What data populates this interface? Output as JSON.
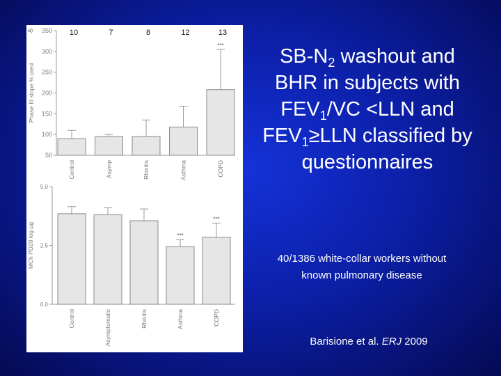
{
  "slide": {
    "title_parts": {
      "p1": "SB-N",
      "sub1": "2",
      "p2": " washout and BHR in subjects with FEV",
      "sub2": "1",
      "p3": "/VC <LLN and FEV",
      "sub3": "1",
      "p4": "≥LLN classified by questionnaires"
    },
    "subtitle": "40/1386 white-collar workers without known pulmonary disease",
    "citation": {
      "authors": "Barisione et al. ",
      "journal": "ERJ",
      "year": " 2009"
    }
  },
  "colors": {
    "background": "#0c1fa8",
    "bar_fill": "#e6e6e6",
    "bar_stroke": "#888888",
    "axis": "#999999",
    "text": "#ffffff"
  },
  "chart_data": [
    {
      "type": "bar",
      "panel_label": "a)",
      "ylabel": "Phase III slope % pred",
      "ylim": [
        50,
        350
      ],
      "yticks": [
        "50",
        "100",
        "150",
        "200",
        "250",
        "300",
        "350"
      ],
      "categories": [
        "Control",
        "Asymp",
        "Rhinitis",
        "Asthma",
        "COPD"
      ],
      "values": [
        90,
        95,
        95,
        118,
        208
      ],
      "error_upper": [
        110,
        100,
        135,
        168,
        305
      ],
      "sample_sizes": [
        "10",
        "7",
        "8",
        "12",
        "13"
      ],
      "significance": [
        "",
        "",
        "",
        "",
        "***"
      ]
    },
    {
      "type": "bar",
      "ylabel": "MCh PD20 log µg",
      "ylim": [
        0.0,
        5.0
      ],
      "yticks": [
        "0.0",
        "2.5",
        "5.0"
      ],
      "categories": [
        "Control",
        "Asymptomatic",
        "Rhinitis",
        "Asthma",
        "COPD"
      ],
      "values": [
        3.85,
        3.8,
        3.55,
        2.45,
        2.85
      ],
      "error_upper": [
        4.15,
        4.1,
        4.05,
        2.75,
        3.45
      ],
      "significance": [
        "",
        "",
        "",
        "***",
        "***"
      ]
    }
  ]
}
